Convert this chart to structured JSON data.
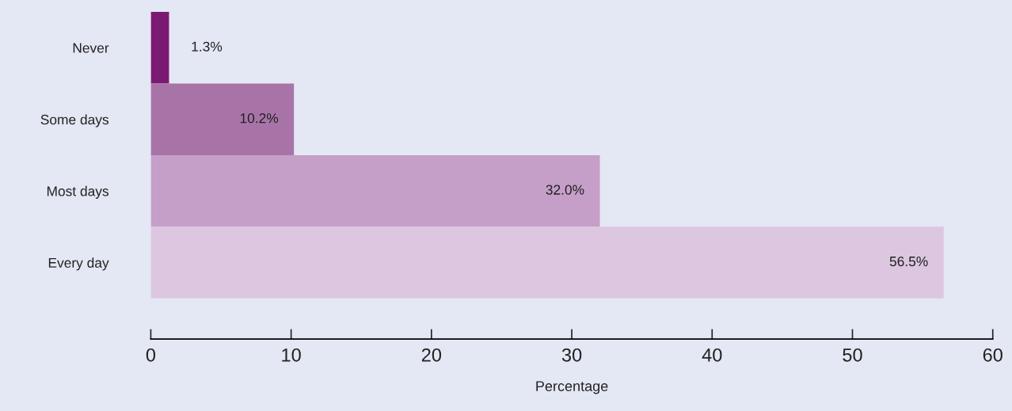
{
  "chart_data": {
    "type": "bar",
    "orientation": "horizontal",
    "categories": [
      "Never",
      "Some days",
      "Most days",
      "Every day"
    ],
    "values": [
      1.3,
      10.2,
      32.0,
      56.5
    ],
    "colors": [
      "#7b1a72",
      "#a874a8",
      "#c59fc8",
      "#dcc6e0"
    ],
    "value_labels": [
      "1.3%",
      "10.2%",
      "32.0%",
      "56.5%"
    ],
    "xlabel": "Percentage",
    "xlim": [
      0,
      60
    ],
    "xticks": [
      0,
      10,
      20,
      30,
      40,
      50,
      60
    ],
    "grid": false
  }
}
